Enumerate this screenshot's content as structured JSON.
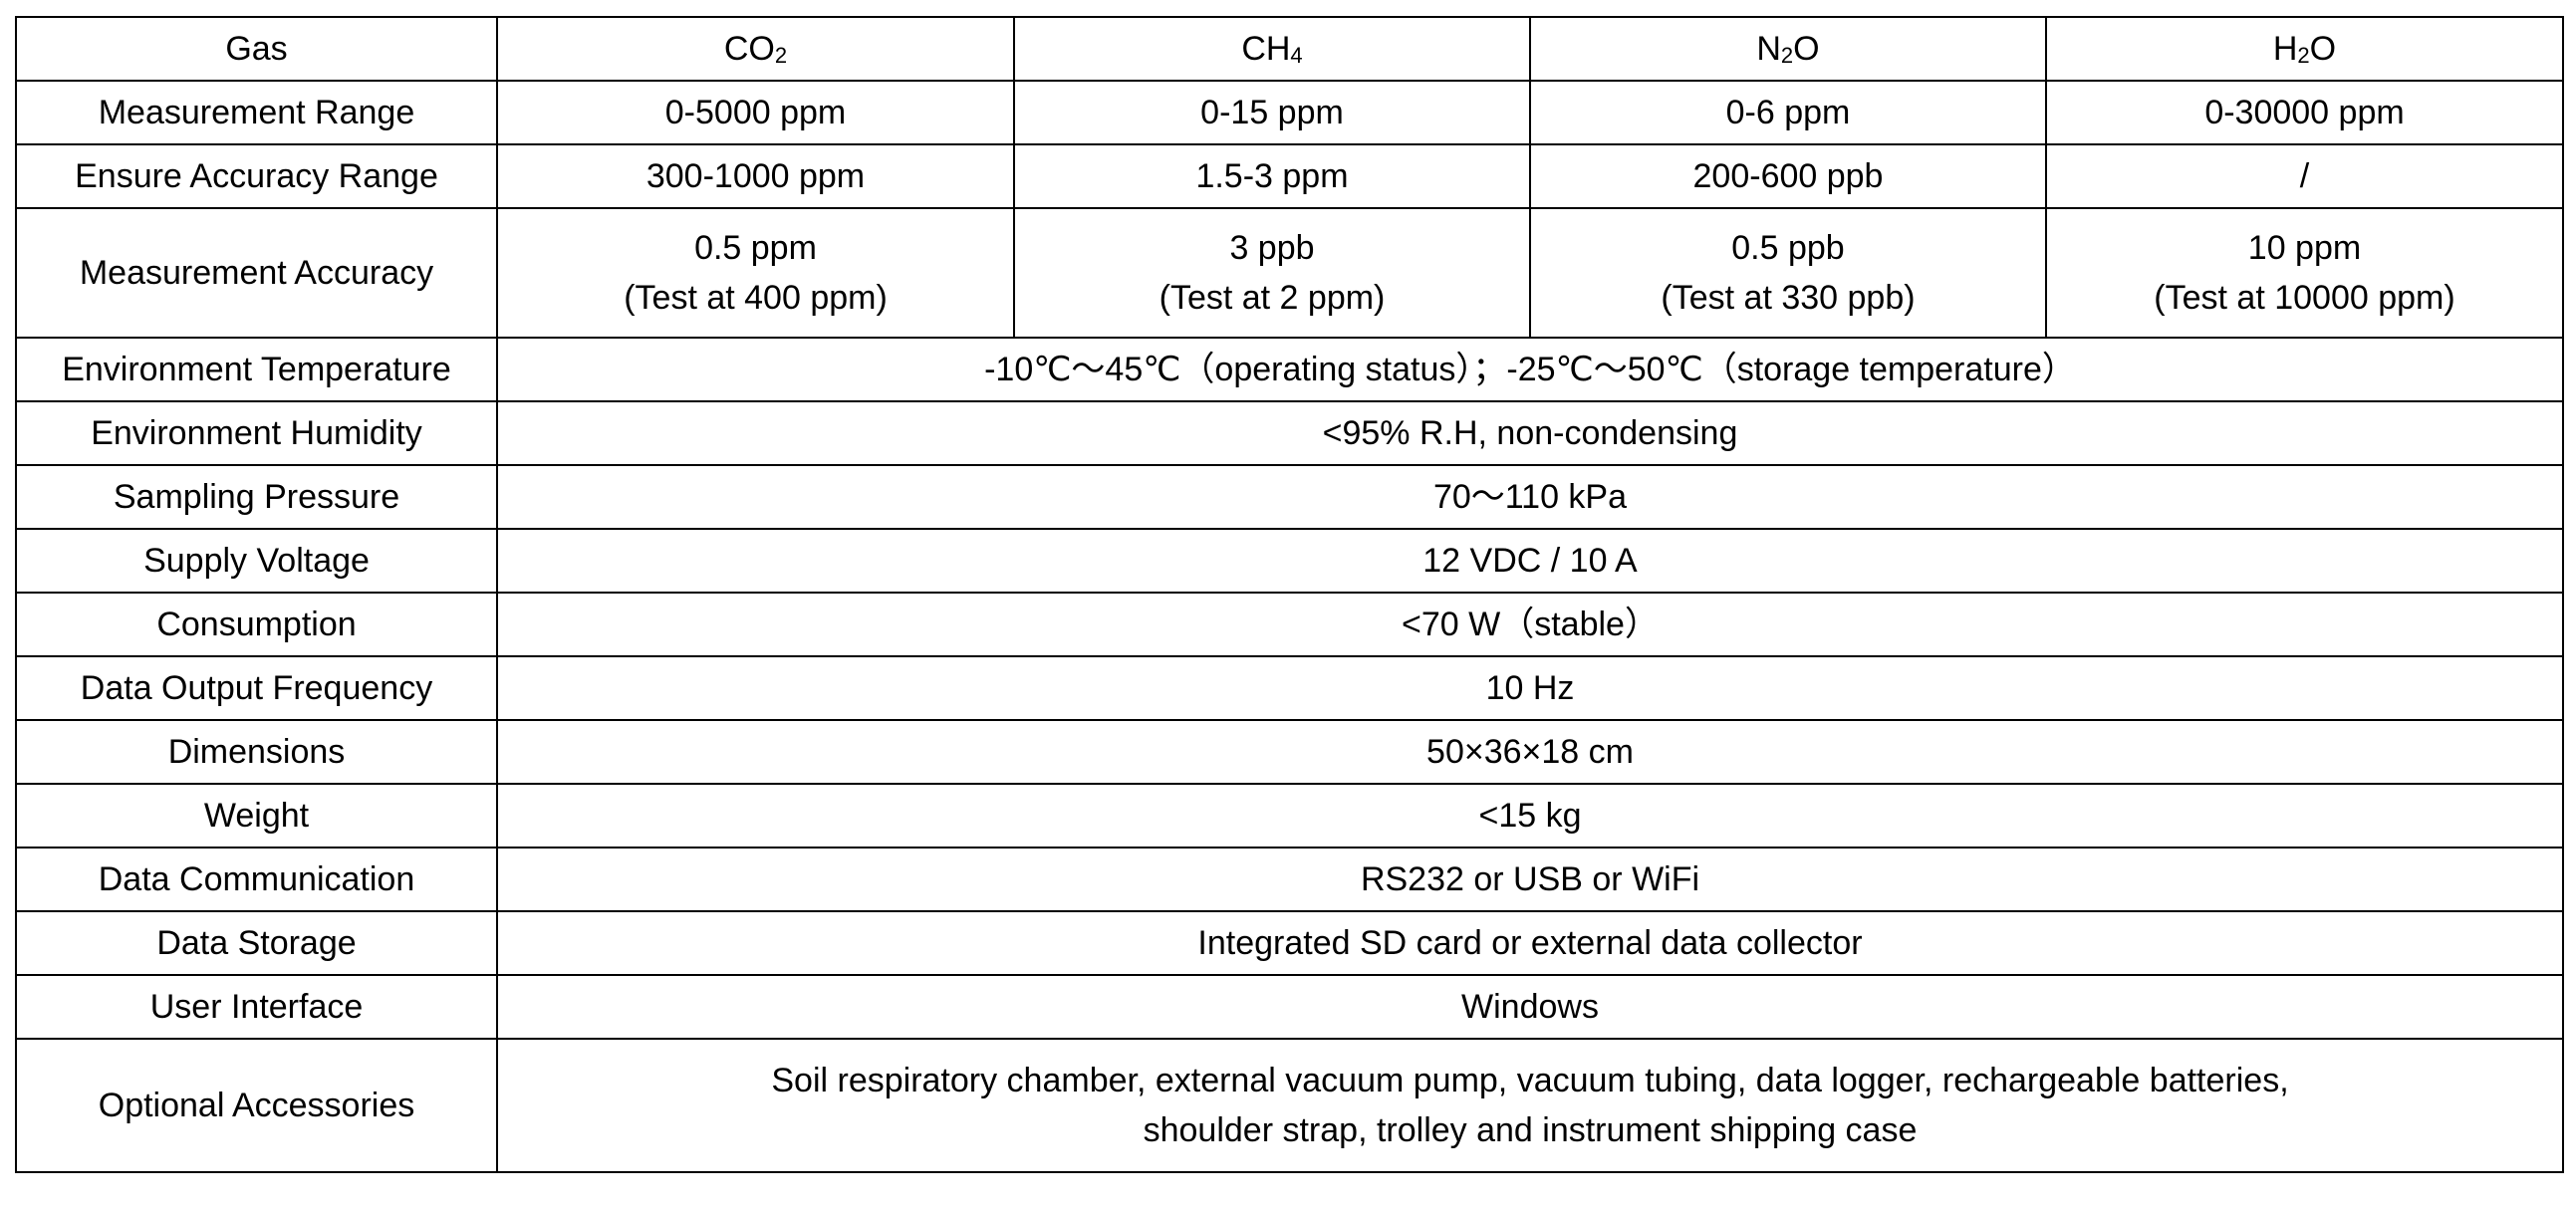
{
  "header": {
    "label": "Gas",
    "gases": [
      {
        "base": "CO",
        "sub": "2"
      },
      {
        "base": "CH",
        "sub": "4"
      },
      {
        "base": "N",
        "sub": "2",
        "tail": "O"
      },
      {
        "base": "H",
        "sub": "2",
        "tail": "O"
      }
    ]
  },
  "per_gas_rows": [
    {
      "label": "Measurement Range",
      "values": [
        [
          "0-5000 ppm"
        ],
        [
          "0-15 ppm"
        ],
        [
          "0-6 ppm"
        ],
        [
          "0-30000 ppm"
        ]
      ]
    },
    {
      "label": "Ensure Accuracy Range",
      "values": [
        [
          "300-1000 ppm"
        ],
        [
          "1.5-3 ppm"
        ],
        [
          "200-600 ppb"
        ],
        [
          "/"
        ]
      ]
    },
    {
      "label": "Measurement Accuracy",
      "values": [
        [
          "0.5 ppm",
          "(Test at 400 ppm)"
        ],
        [
          "3 ppb",
          "(Test at 2 ppm)"
        ],
        [
          "0.5 ppb",
          "(Test at 330 ppb)"
        ],
        [
          "10 ppm",
          "(Test at 10000 ppm)"
        ]
      ]
    }
  ],
  "shared_rows": [
    {
      "label": "Environment Temperature",
      "lines": [
        "-10℃～45℃（operating status）；-25℃～50℃（storage temperature）"
      ]
    },
    {
      "label": "Environment Humidity",
      "lines": [
        "<95% R.H, non-condensing"
      ]
    },
    {
      "label": "Sampling Pressure",
      "lines": [
        "70～110 kPa"
      ]
    },
    {
      "label": "Supply Voltage",
      "lines": [
        "12 VDC / 10 A"
      ]
    },
    {
      "label": "Consumption",
      "lines": [
        "<70 W（stable）"
      ]
    },
    {
      "label": "Data Output Frequency",
      "lines": [
        "10 Hz"
      ]
    },
    {
      "label": "Dimensions",
      "lines": [
        "50×36×18 cm"
      ]
    },
    {
      "label": "Weight",
      "lines": [
        "<15 kg"
      ]
    },
    {
      "label": "Data Communication",
      "lines": [
        "RS232 or USB or WiFi"
      ]
    },
    {
      "label": "Data Storage",
      "lines": [
        "Integrated SD card or external data collector"
      ]
    },
    {
      "label": "User Interface",
      "lines": [
        "Windows"
      ]
    },
    {
      "label": "Optional Accessories",
      "lines": [
        "Soil respiratory chamber, external vacuum pump, vacuum tubing, data logger, rechargeable batteries,",
        "shoulder strap, trolley and instrument shipping case"
      ]
    }
  ]
}
